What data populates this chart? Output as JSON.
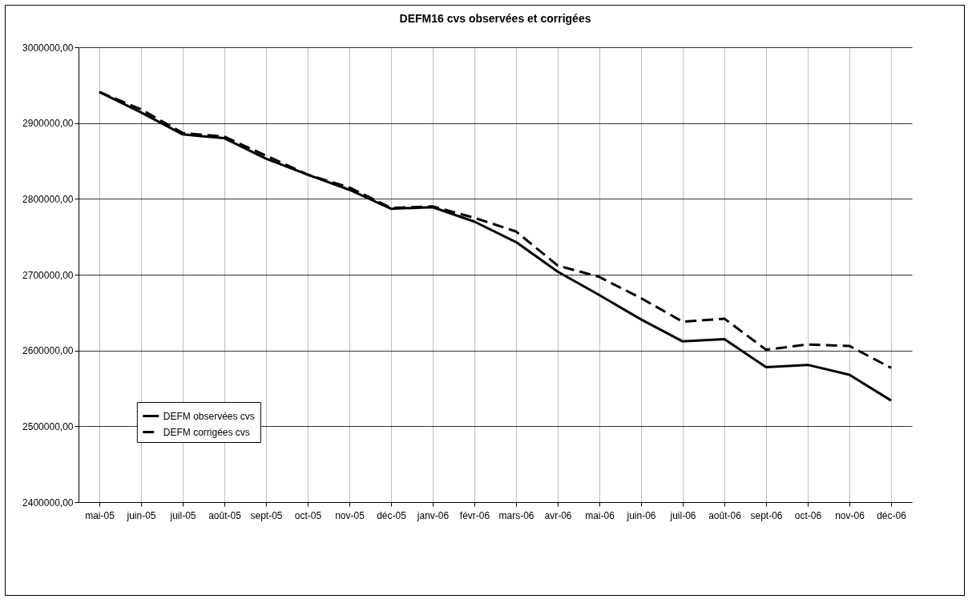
{
  "chart_data": {
    "type": "line",
    "title": "DEFM16 cvs observées et corrigées",
    "categories": [
      "mai-05",
      "juin-05",
      "juil-05",
      "août-05",
      "sept-05",
      "oct-05",
      "nov-05",
      "déc-05",
      "janv-06",
      "févr-06",
      "mars-06",
      "avr-06",
      "mai-06",
      "juin-06",
      "juil-06",
      "août-06",
      "sept-06",
      "oct-06",
      "nov-06",
      "déc-06"
    ],
    "series": [
      {
        "name": "DEFM observées cvs",
        "color": "#000000",
        "line_style": "solid",
        "values": [
          2941000,
          2914000,
          2885000,
          2880000,
          2853000,
          2832000,
          2812000,
          2787000,
          2789000,
          2770000,
          2743000,
          2704000,
          2673000,
          2641000,
          2612000,
          2615000,
          2578000,
          2581000,
          2568000,
          2534000
        ]
      },
      {
        "name": "DEFM corrigées cvs",
        "color": "#000000",
        "line_style": "dashed",
        "values": [
          2941000,
          2918000,
          2887000,
          2882000,
          2857000,
          2832000,
          2815000,
          2788000,
          2790000,
          2775000,
          2757000,
          2712000,
          2697000,
          2669000,
          2638000,
          2642000,
          2601000,
          2608000,
          2606000,
          2577000
        ]
      }
    ],
    "ylim": [
      2400000,
      3000000
    ],
    "yticks": [
      {
        "value": 2400000,
        "label": "2400000,00"
      },
      {
        "value": 2500000,
        "label": "2500000,00"
      },
      {
        "value": 2600000,
        "label": "2600000,00"
      },
      {
        "value": 2700000,
        "label": "2700000,00"
      },
      {
        "value": 2800000,
        "label": "2800000,00"
      },
      {
        "value": 2900000,
        "label": "2900000,00"
      },
      {
        "value": 3000000,
        "label": "3000000,00"
      }
    ],
    "grid": true,
    "legend": "left"
  }
}
